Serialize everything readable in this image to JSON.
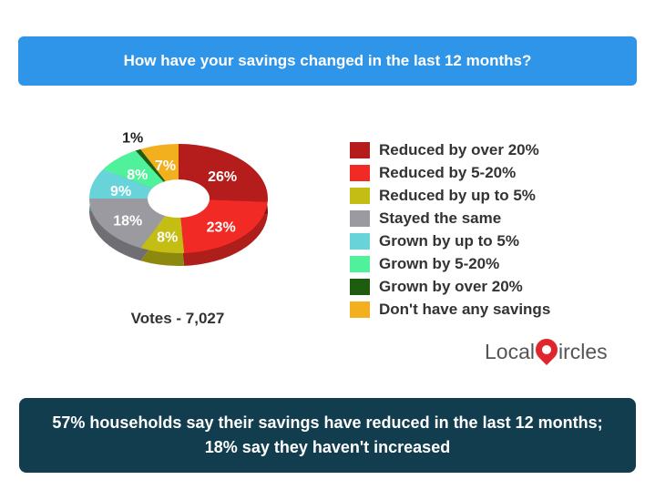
{
  "question": "How have your savings changed in the last 12 months?",
  "votes": "Votes - 7,027",
  "summary": {
    "line1": "57% households say their savings have reduced in the last 12 months;",
    "line2": "18% say they haven't increased"
  },
  "logo": {
    "text_before": "Local",
    "text_after": "ircles",
    "pin_icon": "location-pin-icon"
  },
  "chart_data": {
    "type": "pie",
    "variant": "donut",
    "title": "How have your savings changed in the last 12 months?",
    "legend_position": "right",
    "slices": [
      {
        "label": "Reduced by over 20%",
        "value": 26,
        "display": "26%",
        "color": "#b51d1d"
      },
      {
        "label": "Reduced by 5-20%",
        "value": 23,
        "display": "23%",
        "color": "#f22a25"
      },
      {
        "label": "Reduced by up to 5%",
        "value": 8,
        "display": "8%",
        "color": "#c4be14"
      },
      {
        "label": "Stayed the same",
        "value": 18,
        "display": "18%",
        "color": "#9a9aa0"
      },
      {
        "label": "Grown by up to 5%",
        "value": 9,
        "display": "9%",
        "color": "#68d4d9"
      },
      {
        "label": "Grown by 5-20%",
        "value": 8,
        "display": "8%",
        "color": "#4ff29a"
      },
      {
        "label": "Grown by over 20%",
        "value": 1,
        "display": "1%",
        "color": "#1e5c10"
      },
      {
        "label": "Don't have any savings",
        "value": 7,
        "display": "7%",
        "color": "#f2b01e"
      }
    ]
  }
}
